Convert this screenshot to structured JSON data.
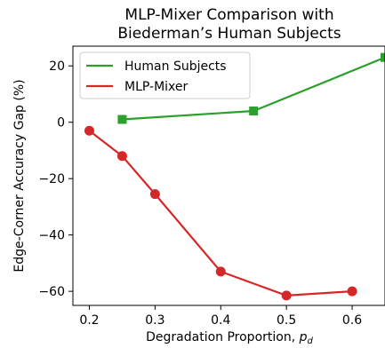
{
  "chart_data": {
    "type": "line",
    "title_lines": [
      "MLP-Mixer Comparison with",
      "Biederman’s Human Subjects"
    ],
    "xlabel": "Degradation Proportion, ",
    "xlabel_symbol": "p",
    "xlabel_subscript": "d",
    "ylabel": "Edge-Corner Accuracy Gap (%)",
    "xlim": [
      0.175,
      0.65
    ],
    "ylim": [
      -65,
      27
    ],
    "xticks": [
      {
        "value": 0.2,
        "label": "0.2"
      },
      {
        "value": 0.3,
        "label": "0.3"
      },
      {
        "value": 0.4,
        "label": "0.4"
      },
      {
        "value": 0.5,
        "label": "0.5"
      },
      {
        "value": 0.6,
        "label": "0.6"
      }
    ],
    "yticks": [
      {
        "value": 20,
        "label": "20"
      },
      {
        "value": 0,
        "label": "0"
      },
      {
        "value": -20,
        "label": "−20"
      },
      {
        "value": -40,
        "label": "−40"
      },
      {
        "value": -60,
        "label": "−60"
      }
    ],
    "grid": false,
    "legend_position": "top-left",
    "series": [
      {
        "name": "Human Subjects",
        "color": "#2ca02c",
        "marker": "square",
        "x": [
          0.25,
          0.45,
          0.65
        ],
        "y": [
          1,
          4,
          23
        ]
      },
      {
        "name": "MLP-Mixer",
        "color": "#d62728",
        "marker": "circle",
        "x": [
          0.2,
          0.25,
          0.3,
          0.4,
          0.5,
          0.6
        ],
        "y": [
          -3,
          -12,
          -25.5,
          -53,
          -61.5,
          -60
        ]
      }
    ]
  }
}
